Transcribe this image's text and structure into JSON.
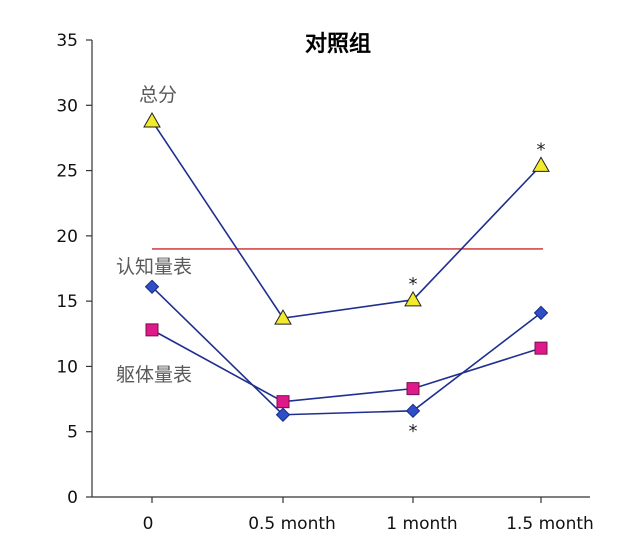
{
  "chart_data": {
    "type": "line",
    "title": "对照组",
    "xlabel": "",
    "ylabel": "",
    "categories": [
      "0",
      "0.5 month",
      "1 month",
      "1.5 month"
    ],
    "ylim": [
      0,
      35
    ],
    "yticks": [
      0,
      5,
      10,
      15,
      20,
      25,
      30,
      35
    ],
    "grid": false,
    "legend": "none",
    "series": [
      {
        "name": "总分",
        "values": [
          28.8,
          13.7,
          15.1,
          25.4
        ],
        "marker": "triangle",
        "marker_color": "#f2ea2a",
        "line_color": "#1f2f8f"
      },
      {
        "name": "认知量表",
        "values": [
          16.1,
          6.3,
          6.6,
          14.1
        ],
        "marker": "diamond",
        "marker_color": "#2f4fc8",
        "line_color": "#1f2f8f"
      },
      {
        "name": "躯体量表",
        "values": [
          12.8,
          7.3,
          8.3,
          11.4
        ],
        "marker": "square",
        "marker_color": "#e0198a",
        "line_color": "#1f2f8f"
      }
    ],
    "reference_line": {
      "y": 19.0,
      "color": "#cc2a2a"
    },
    "annotations": [
      {
        "text": "*",
        "series": 0,
        "index": 2,
        "position": "above"
      },
      {
        "text": "*",
        "series": 0,
        "index": 3,
        "position": "above"
      },
      {
        "text": "*",
        "series": 1,
        "index": 2,
        "position": "below"
      }
    ]
  }
}
